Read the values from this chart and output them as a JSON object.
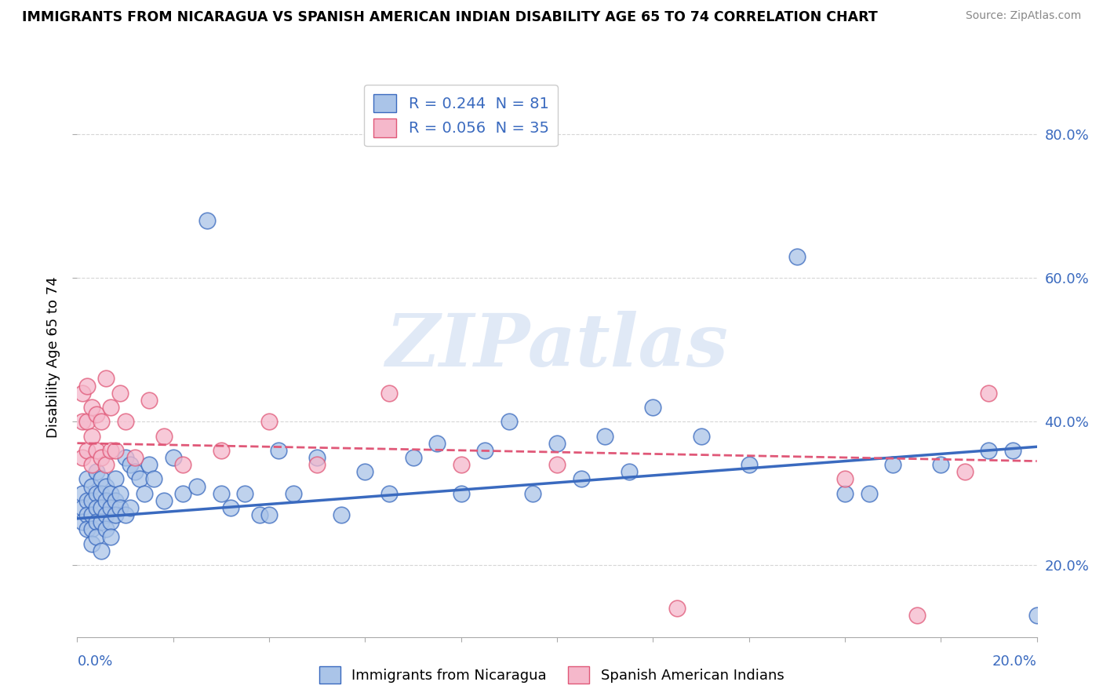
{
  "title": "IMMIGRANTS FROM NICARAGUA VS SPANISH AMERICAN INDIAN DISABILITY AGE 65 TO 74 CORRELATION CHART",
  "source": "Source: ZipAtlas.com",
  "ylabel": "Disability Age 65 to 74",
  "legend_entries": [
    {
      "label": "R = 0.244  N = 81",
      "color": "#aac4e8"
    },
    {
      "label": "R = 0.056  N = 35",
      "color": "#f5b8cb"
    }
  ],
  "legend_names": [
    "Immigrants from Nicaragua",
    "Spanish American Indians"
  ],
  "xlim": [
    0.0,
    0.2
  ],
  "ylim": [
    0.1,
    0.88
  ],
  "yticks": [
    0.2,
    0.4,
    0.6,
    0.8
  ],
  "ytick_labels": [
    "20.0%",
    "40.0%",
    "60.0%",
    "80.0%"
  ],
  "blue_color": "#aac4e8",
  "pink_color": "#f5b8cb",
  "blue_line_color": "#3a6abf",
  "pink_line_color": "#e05878",
  "pink_line_style": "--",
  "watermark_text": "ZIPatlas",
  "blue_scatter_x": [
    0.001,
    0.001,
    0.001,
    0.002,
    0.002,
    0.002,
    0.002,
    0.003,
    0.003,
    0.003,
    0.003,
    0.003,
    0.004,
    0.004,
    0.004,
    0.004,
    0.004,
    0.005,
    0.005,
    0.005,
    0.005,
    0.005,
    0.006,
    0.006,
    0.006,
    0.006,
    0.007,
    0.007,
    0.007,
    0.007,
    0.008,
    0.008,
    0.008,
    0.009,
    0.009,
    0.01,
    0.01,
    0.011,
    0.011,
    0.012,
    0.013,
    0.014,
    0.015,
    0.016,
    0.018,
    0.02,
    0.022,
    0.025,
    0.027,
    0.03,
    0.032,
    0.035,
    0.038,
    0.04,
    0.042,
    0.045,
    0.05,
    0.055,
    0.06,
    0.065,
    0.07,
    0.075,
    0.08,
    0.085,
    0.09,
    0.095,
    0.1,
    0.105,
    0.11,
    0.115,
    0.12,
    0.13,
    0.14,
    0.15,
    0.16,
    0.165,
    0.17,
    0.18,
    0.19,
    0.195,
    0.2
  ],
  "blue_scatter_y": [
    0.3,
    0.28,
    0.26,
    0.32,
    0.29,
    0.27,
    0.25,
    0.31,
    0.29,
    0.27,
    0.25,
    0.23,
    0.33,
    0.3,
    0.28,
    0.26,
    0.24,
    0.32,
    0.3,
    0.28,
    0.26,
    0.22,
    0.31,
    0.29,
    0.27,
    0.25,
    0.3,
    0.28,
    0.26,
    0.24,
    0.32,
    0.29,
    0.27,
    0.3,
    0.28,
    0.35,
    0.27,
    0.34,
    0.28,
    0.33,
    0.32,
    0.3,
    0.34,
    0.32,
    0.29,
    0.35,
    0.3,
    0.31,
    0.68,
    0.3,
    0.28,
    0.3,
    0.27,
    0.27,
    0.36,
    0.3,
    0.35,
    0.27,
    0.33,
    0.3,
    0.35,
    0.37,
    0.3,
    0.36,
    0.4,
    0.3,
    0.37,
    0.32,
    0.38,
    0.33,
    0.42,
    0.38,
    0.34,
    0.63,
    0.3,
    0.3,
    0.34,
    0.34,
    0.36,
    0.36,
    0.13
  ],
  "pink_scatter_x": [
    0.001,
    0.001,
    0.001,
    0.002,
    0.002,
    0.002,
    0.003,
    0.003,
    0.003,
    0.004,
    0.004,
    0.005,
    0.005,
    0.006,
    0.006,
    0.007,
    0.007,
    0.008,
    0.009,
    0.01,
    0.012,
    0.015,
    0.018,
    0.022,
    0.03,
    0.04,
    0.05,
    0.065,
    0.08,
    0.1,
    0.125,
    0.16,
    0.175,
    0.185,
    0.19
  ],
  "pink_scatter_y": [
    0.35,
    0.4,
    0.44,
    0.36,
    0.4,
    0.45,
    0.34,
    0.38,
    0.42,
    0.36,
    0.41,
    0.35,
    0.4,
    0.34,
    0.46,
    0.36,
    0.42,
    0.36,
    0.44,
    0.4,
    0.35,
    0.43,
    0.38,
    0.34,
    0.36,
    0.4,
    0.34,
    0.44,
    0.34,
    0.34,
    0.14,
    0.32,
    0.13,
    0.33,
    0.44
  ],
  "blue_line_x0": 0.0,
  "blue_line_x1": 0.2,
  "blue_line_y0": 0.265,
  "blue_line_y1": 0.365,
  "pink_line_y0": 0.37,
  "pink_line_y1": 0.345
}
